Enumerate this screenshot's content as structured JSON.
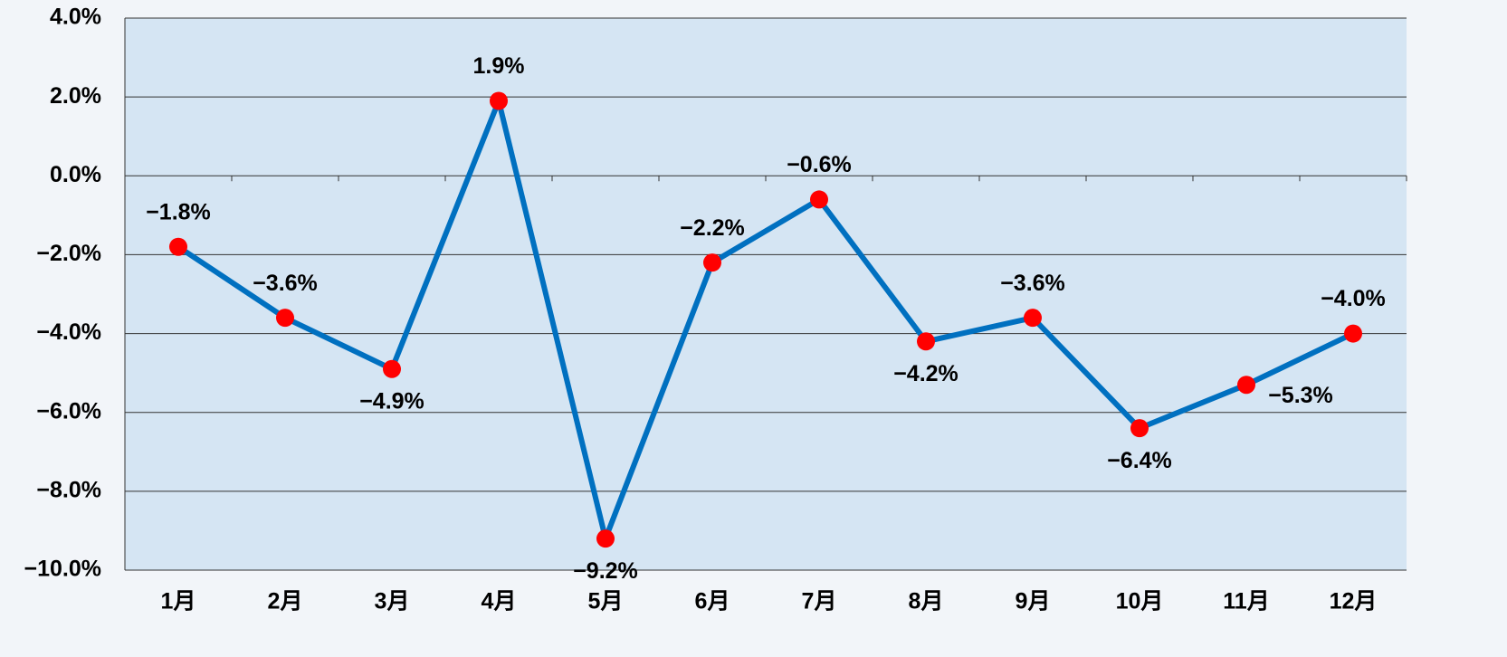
{
  "chart_data": {
    "type": "line",
    "categories": [
      "1月",
      "2月",
      "3月",
      "4月",
      "5月",
      "6月",
      "7月",
      "8月",
      "9月",
      "10月",
      "11月",
      "12月"
    ],
    "series": [
      {
        "name": null,
        "color": "#0070c0",
        "marker_color": "#ff0000",
        "values": [
          -1.8,
          -3.6,
          -4.9,
          1.9,
          -9.2,
          -2.2,
          -0.6,
          -4.2,
          -3.6,
          -6.4,
          -5.3,
          -4.0
        ],
        "value_labels": [
          "−1.8%",
          "−3.6%",
          "−4.9%",
          "1.9%",
          "−9.2%",
          "−2.2%",
          "−0.6%",
          "−4.2%",
          "−3.6%",
          "−6.4%",
          "−5.3%",
          "−4.0%"
        ]
      }
    ],
    "ylim": [
      -10,
      4
    ],
    "yticks": [
      {
        "value": -10,
        "label": "−10.0%"
      },
      {
        "value": -8,
        "label": "−8.0%"
      },
      {
        "value": -6,
        "label": "−6.0%"
      },
      {
        "value": -4,
        "label": "−4.0%"
      },
      {
        "value": -2,
        "label": "−2.0%"
      },
      {
        "value": 0,
        "label": "0.0%"
      },
      {
        "value": 2,
        "label": "2.0%"
      },
      {
        "value": 4,
        "label": "4.0%"
      }
    ],
    "grid": true
  }
}
